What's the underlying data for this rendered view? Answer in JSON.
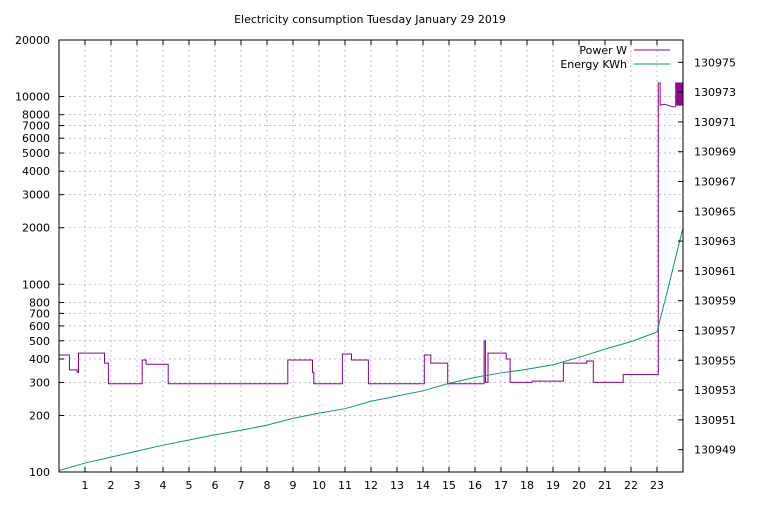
{
  "chart_data": {
    "type": "line",
    "title": "Electricity consumption Tuesday January 29 2019",
    "xlabel": "",
    "ylabel": "",
    "xlim": [
      0,
      24
    ],
    "ylim_left": [
      100,
      20000
    ],
    "ylim_right": [
      130947.5,
      130976.5
    ],
    "left_scale": "log",
    "grid": true,
    "legend_position": "top-right",
    "x_ticks": [
      1,
      2,
      3,
      4,
      5,
      6,
      7,
      8,
      9,
      10,
      11,
      12,
      13,
      14,
      15,
      16,
      17,
      18,
      19,
      20,
      21,
      22,
      23
    ],
    "x_tick_labels": [
      "1",
      "2",
      "3",
      "4",
      "5",
      "6",
      "7",
      "8",
      "9",
      "10",
      "11",
      "12",
      "13",
      "14",
      "15",
      "16",
      "17",
      "18",
      "19",
      "20",
      "21",
      "22",
      "23"
    ],
    "left_ticks": [
      100,
      200,
      300,
      400,
      500,
      600,
      700,
      800,
      1000,
      2000,
      3000,
      4000,
      5000,
      6000,
      7000,
      8000,
      10000,
      20000
    ],
    "left_tick_labels": [
      "100",
      "200",
      "300",
      "400",
      "500",
      "600",
      "700",
      "800",
      "1000",
      "2000",
      "3000",
      "4000",
      "5000",
      "6000",
      "7000",
      "8000",
      "10000",
      "20000"
    ],
    "right_ticks": [
      130949,
      130951,
      130953,
      130955,
      130957,
      130959,
      130961,
      130963,
      130965,
      130967,
      130969,
      130971,
      130973,
      130975
    ],
    "right_tick_labels": [
      "130949",
      "130951",
      "130953",
      "130955",
      "130957",
      "130959",
      "130961",
      "130963",
      "130965",
      "130967",
      "130969",
      "130971",
      "130973",
      "130975"
    ],
    "series": [
      {
        "name": "Power W",
        "axis": "left",
        "color": "#8b008b",
        "points": [
          [
            0,
            420
          ],
          [
            0.4,
            420
          ],
          [
            0.4,
            350
          ],
          [
            0.7,
            350
          ],
          [
            0.7,
            340
          ],
          [
            0.75,
            340
          ],
          [
            0.75,
            430
          ],
          [
            1.75,
            430
          ],
          [
            1.75,
            380
          ],
          [
            1.9,
            380
          ],
          [
            1.9,
            295
          ],
          [
            3.2,
            295
          ],
          [
            3.2,
            395
          ],
          [
            3.35,
            395
          ],
          [
            3.35,
            375
          ],
          [
            4.2,
            375
          ],
          [
            4.2,
            295
          ],
          [
            8.8,
            295
          ],
          [
            8.8,
            395
          ],
          [
            9.75,
            395
          ],
          [
            9.75,
            340
          ],
          [
            9.8,
            340
          ],
          [
            9.8,
            295
          ],
          [
            10.9,
            295
          ],
          [
            10.9,
            425
          ],
          [
            11.25,
            425
          ],
          [
            11.25,
            395
          ],
          [
            11.9,
            395
          ],
          [
            11.9,
            295
          ],
          [
            14.05,
            295
          ],
          [
            14.05,
            420
          ],
          [
            14.3,
            420
          ],
          [
            14.3,
            380
          ],
          [
            14.95,
            380
          ],
          [
            14.95,
            295
          ],
          [
            16.35,
            295
          ],
          [
            16.35,
            500
          ],
          [
            16.4,
            500
          ],
          [
            16.4,
            300
          ],
          [
            16.5,
            300
          ],
          [
            16.5,
            430
          ],
          [
            17.2,
            430
          ],
          [
            17.2,
            400
          ],
          [
            17.35,
            400
          ],
          [
            17.35,
            300
          ],
          [
            18.2,
            300
          ],
          [
            18.2,
            305
          ],
          [
            19.4,
            305
          ],
          [
            19.4,
            380
          ],
          [
            20.3,
            380
          ],
          [
            20.3,
            390
          ],
          [
            20.55,
            390
          ],
          [
            20.55,
            300
          ],
          [
            21.7,
            300
          ],
          [
            21.7,
            330
          ],
          [
            23.05,
            330
          ],
          [
            23.05,
            11800
          ],
          [
            23.12,
            11800
          ],
          [
            23.12,
            9000
          ],
          [
            23.3,
            9100
          ],
          [
            23.5,
            8900
          ],
          [
            23.65,
            8800
          ],
          [
            23.72,
            8850
          ],
          [
            23.72,
            11800
          ],
          [
            23.76,
            11800
          ],
          [
            23.76,
            9000
          ],
          [
            23.8,
            9000
          ],
          [
            23.8,
            11800
          ],
          [
            23.84,
            11800
          ],
          [
            23.84,
            9000
          ],
          [
            23.88,
            9000
          ],
          [
            23.88,
            11800
          ],
          [
            23.92,
            11800
          ],
          [
            23.92,
            9000
          ],
          [
            23.96,
            9000
          ],
          [
            23.96,
            11800
          ],
          [
            24,
            11800
          ]
        ]
      },
      {
        "name": "Energy KWh",
        "axis": "right",
        "color": "#009e73",
        "points": [
          [
            0,
            130947.6
          ],
          [
            1,
            130948.1
          ],
          [
            2,
            130948.5
          ],
          [
            3,
            130948.9
          ],
          [
            4,
            130949.3
          ],
          [
            5,
            130949.65
          ],
          [
            6,
            130950.0
          ],
          [
            7,
            130950.3
          ],
          [
            8,
            130950.65
          ],
          [
            9,
            130951.1
          ],
          [
            10,
            130951.45
          ],
          [
            11,
            130951.75
          ],
          [
            12,
            130952.25
          ],
          [
            13,
            130952.6
          ],
          [
            14,
            130952.95
          ],
          [
            15,
            130953.45
          ],
          [
            16,
            130953.85
          ],
          [
            17,
            130954.15
          ],
          [
            18,
            130954.4
          ],
          [
            19,
            130954.7
          ],
          [
            20,
            130955.2
          ],
          [
            21,
            130955.75
          ],
          [
            22,
            130956.25
          ],
          [
            23,
            130956.9
          ],
          [
            23.45,
            130960.0
          ],
          [
            23.8,
            130962.5
          ],
          [
            24,
            130963.9
          ]
        ]
      }
    ]
  }
}
